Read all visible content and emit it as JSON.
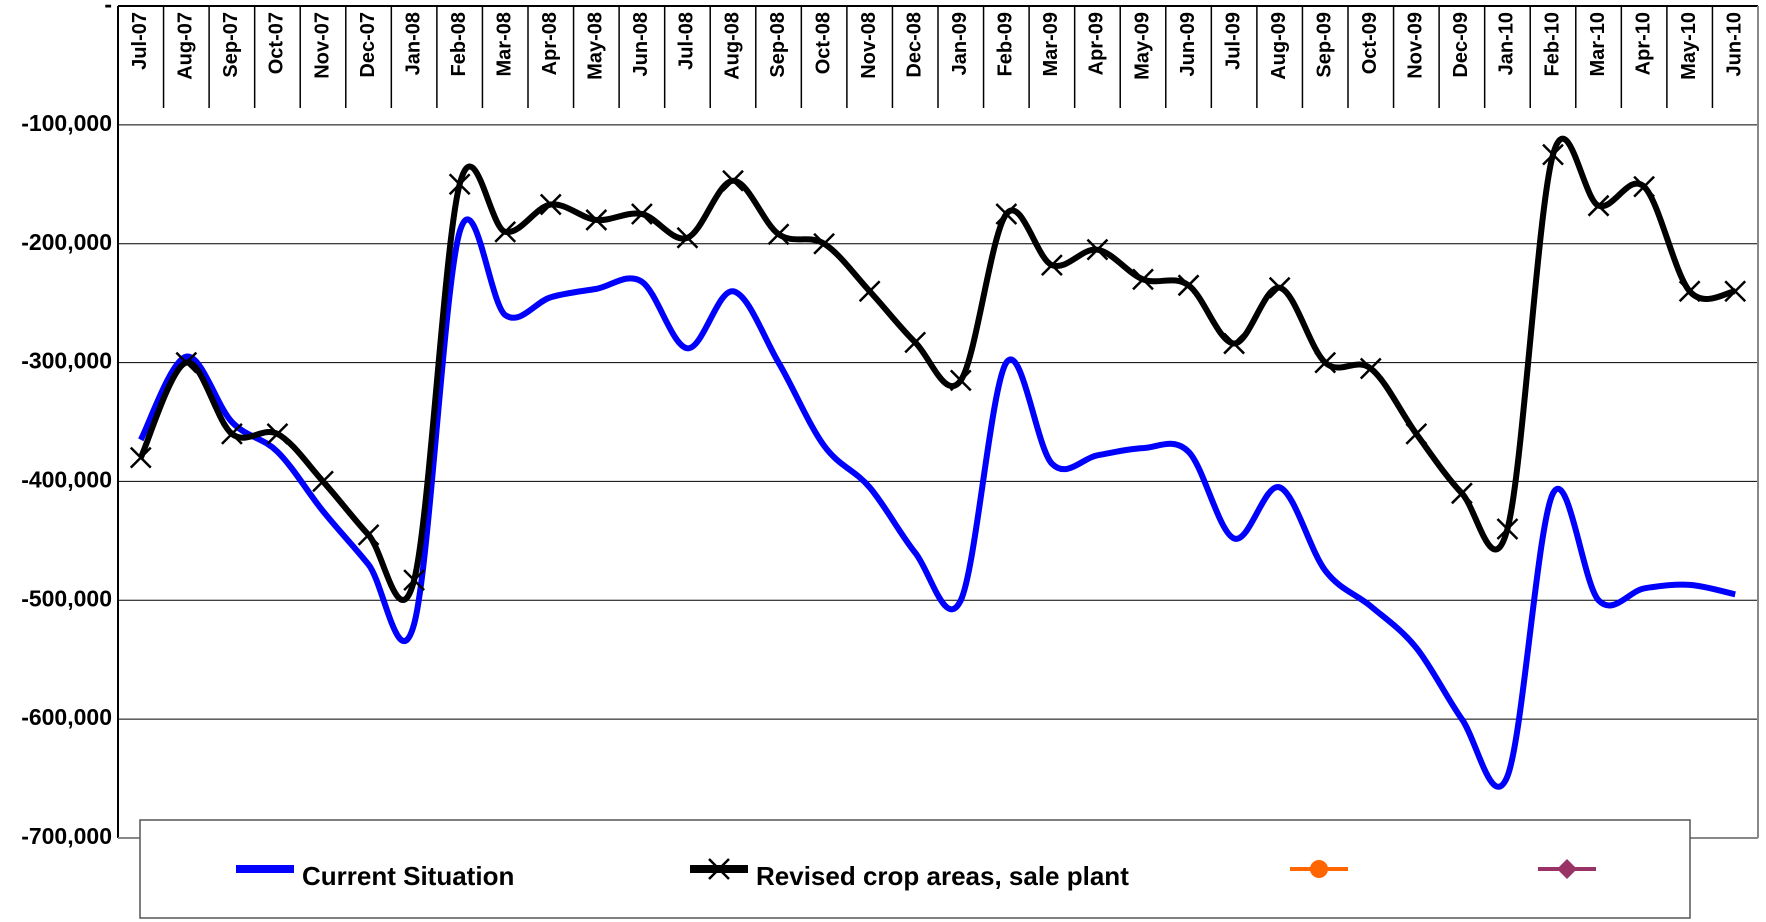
{
  "chart_data": {
    "type": "line",
    "categories": [
      "Jul-07",
      "Aug-07",
      "Sep-07",
      "Oct-07",
      "Nov-07",
      "Dec-07",
      "Jan-08",
      "Feb-08",
      "Mar-08",
      "Apr-08",
      "May-08",
      "Jun-08",
      "Jul-08",
      "Aug-08",
      "Sep-08",
      "Oct-08",
      "Nov-08",
      "Dec-08",
      "Jan-09",
      "Feb-09",
      "Mar-09",
      "Apr-09",
      "May-09",
      "Jun-09",
      "Jul-09",
      "Aug-09",
      "Sep-09",
      "Oct-09",
      "Nov-09",
      "Dec-09",
      "Jan-10",
      "Feb-10",
      "Mar-10",
      "Apr-10",
      "May-10",
      "Jun-10"
    ],
    "series": [
      {
        "name": "Current Situation",
        "color": "#0000ff",
        "marker": "none",
        "values": [
          -365000,
          -295000,
          -350000,
          -375000,
          -425000,
          -470000,
          -520000,
          -190000,
          -260000,
          -245000,
          -238000,
          -232000,
          -288000,
          -240000,
          -300000,
          -370000,
          -405000,
          -460000,
          -500000,
          -300000,
          -385000,
          -378000,
          -372000,
          -375000,
          -448000,
          -405000,
          -475000,
          -505000,
          -540000,
          -600000,
          -648000,
          -410000,
          -500000,
          -490000,
          -487000,
          -495000
        ]
      },
      {
        "name": "Revised crop areas, sale plant",
        "color": "#000000",
        "marker": "x",
        "values": [
          -380000,
          -300000,
          -360000,
          -360000,
          -400000,
          -445000,
          -483000,
          -150000,
          -190000,
          -167000,
          -180000,
          -175000,
          -195000,
          -147000,
          -192000,
          -200000,
          -240000,
          -283000,
          -315000,
          -175000,
          -218000,
          -205000,
          -230000,
          -235000,
          -284000,
          -237000,
          -300000,
          -305000,
          -360000,
          -410000,
          -440000,
          -125000,
          -168000,
          -152000,
          -240000,
          -240000
        ]
      },
      {
        "color": "#ff6600",
        "marker": "circle",
        "values": [
          null,
          null,
          null,
          null,
          null,
          null,
          null,
          null,
          null,
          null,
          null,
          null,
          null,
          null,
          null,
          null,
          null,
          null,
          null,
          null,
          null,
          null,
          null,
          null,
          null,
          null,
          null,
          null,
          null,
          null,
          null,
          null,
          null,
          null,
          null,
          null
        ]
      },
      {
        "color": "#993366",
        "marker": "diamond",
        "values": [
          null,
          null,
          null,
          null,
          null,
          null,
          null,
          null,
          null,
          null,
          null,
          null,
          null,
          null,
          null,
          null,
          null,
          null,
          null,
          null,
          null,
          null,
          null,
          null,
          null,
          null,
          null,
          null,
          null,
          null,
          null,
          null,
          null,
          null,
          null,
          null
        ]
      }
    ],
    "ylim": [
      -700000,
      0
    ],
    "yticks": [
      {
        "value": 0,
        "label": "-"
      },
      {
        "value": -100000,
        "label": "-100,000"
      },
      {
        "value": -200000,
        "label": "-200,000"
      },
      {
        "value": -300000,
        "label": "-300,000"
      },
      {
        "value": -400000,
        "label": "-400,000"
      },
      {
        "value": -500000,
        "label": "-500,000"
      },
      {
        "value": -600000,
        "label": "-600,000"
      },
      {
        "value": -700000,
        "label": "-700,000"
      }
    ],
    "grid": true,
    "smooth": true,
    "legend": "bottom"
  }
}
